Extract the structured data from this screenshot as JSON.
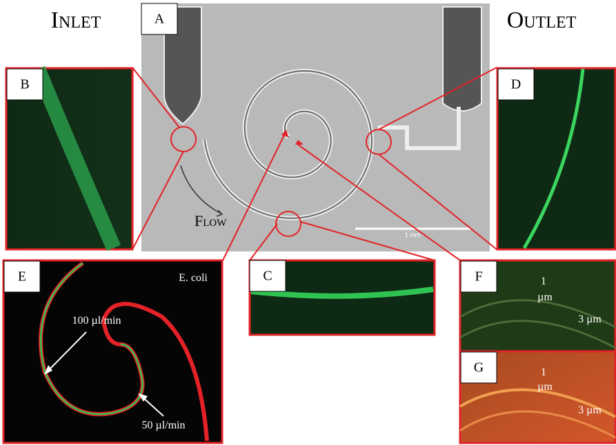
{
  "header": {
    "inlet": "Inlet",
    "outlet": "Outlet"
  },
  "panels": {
    "a": {
      "label": "A",
      "flow": "Flow",
      "scale_bar": "1 mm"
    },
    "b": {
      "label": "B"
    },
    "c": {
      "label": "C"
    },
    "d": {
      "label": "D"
    },
    "e": {
      "label": "E",
      "organism": "E. coli",
      "high_rate": "100 µl/min",
      "low_rate": "50 µl/min"
    },
    "f": {
      "label": "F",
      "small_particle": "1",
      "small_unit": "µm",
      "large_particle": "3 µm"
    },
    "g": {
      "label": "G",
      "small_particle": "1",
      "small_unit": "µm",
      "large_particle": "3 µm"
    }
  }
}
